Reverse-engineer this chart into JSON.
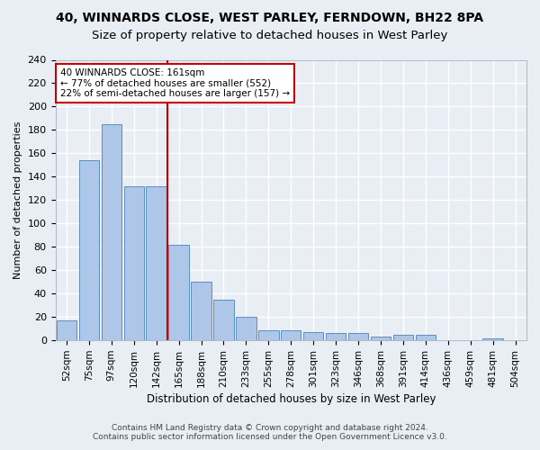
{
  "title1": "40, WINNARDS CLOSE, WEST PARLEY, FERNDOWN, BH22 8PA",
  "title2": "Size of property relative to detached houses in West Parley",
  "xlabel": "Distribution of detached houses by size in West Parley",
  "ylabel": "Number of detached properties",
  "categories": [
    "52sqm",
    "75sqm",
    "97sqm",
    "120sqm",
    "142sqm",
    "165sqm",
    "188sqm",
    "210sqm",
    "233sqm",
    "255sqm",
    "278sqm",
    "301sqm",
    "323sqm",
    "346sqm",
    "368sqm",
    "391sqm",
    "414sqm",
    "436sqm",
    "459sqm",
    "481sqm",
    "504sqm"
  ],
  "values": [
    17,
    154,
    185,
    132,
    132,
    82,
    50,
    35,
    20,
    9,
    9,
    7,
    6,
    6,
    3,
    5,
    5,
    0,
    0,
    2,
    0
  ],
  "bar_color": "#aec6e8",
  "bar_edge_color": "#5a8fc0",
  "vline_x_index": 4.5,
  "annotation_line1": "40 WINNARDS CLOSE: 161sqm",
  "annotation_line2": "← 77% of detached houses are smaller (552)",
  "annotation_line3": "22% of semi-detached houses are larger (157) →",
  "annotation_box_color": "#ffffff",
  "annotation_box_edge_color": "#cc0000",
  "vline_color": "#cc0000",
  "ylim": [
    0,
    240
  ],
  "yticks": [
    0,
    20,
    40,
    60,
    80,
    100,
    120,
    140,
    160,
    180,
    200,
    220,
    240
  ],
  "footer1": "Contains HM Land Registry data © Crown copyright and database right 2024.",
  "footer2": "Contains public sector information licensed under the Open Government Licence v3.0.",
  "bg_color": "#e8eef4",
  "grid_color": "#ffffff",
  "title_fontsize": 10,
  "subtitle_fontsize": 9.5,
  "bar_width": 0.9
}
